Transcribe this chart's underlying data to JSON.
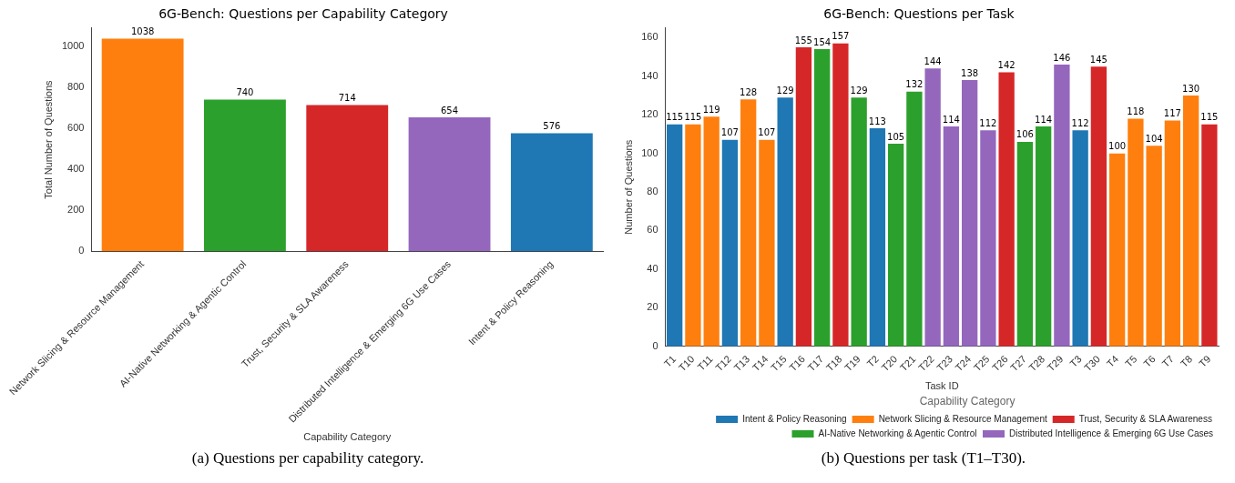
{
  "chart_data": [
    {
      "type": "bar",
      "title": "6G-Bench: Questions per Capability Category",
      "xlabel": "Capability Category",
      "ylabel": "Total Number of Questions",
      "categories": [
        "Network Slicing & Resource Management",
        "AI-Native Networking & Agentic Control",
        "Trust, Security & SLA Awareness",
        "Distributed Intelligence & Emerging 6G Use Cases",
        "Intent & Policy Reasoning"
      ],
      "values": [
        1038,
        740,
        714,
        654,
        576
      ],
      "colors": [
        "#ff7f0e",
        "#2ca02c",
        "#d62728",
        "#9467bd",
        "#1f77b4"
      ],
      "ylim": [
        0,
        1090
      ],
      "yticks": [
        0,
        200,
        400,
        600,
        800,
        1000
      ],
      "grid": false,
      "legend": false,
      "data_labels": true,
      "annotations": [
        "(a) Questions per capability category."
      ]
    },
    {
      "type": "bar",
      "title": "6G-Bench: Questions per Task",
      "xlabel": "Task ID",
      "ylabel": "Number of Questions",
      "legend_title": "Capability Category",
      "categories": [
        "T1",
        "T10",
        "T11",
        "T12",
        "T13",
        "T14",
        "T15",
        "T16",
        "T17",
        "T18",
        "T19",
        "T2",
        "T20",
        "T21",
        "T22",
        "T23",
        "T24",
        "T25",
        "T26",
        "T27",
        "T28",
        "T29",
        "T3",
        "T30",
        "T4",
        "T5",
        "T6",
        "T7",
        "T8",
        "T9"
      ],
      "series": [
        {
          "name": "Intent & Policy Reasoning",
          "color": "#1f77b4",
          "values": [
            115,
            null,
            null,
            107,
            null,
            null,
            129,
            null,
            null,
            null,
            null,
            113,
            null,
            null,
            null,
            null,
            null,
            null,
            null,
            null,
            null,
            null,
            112,
            null,
            null,
            null,
            null,
            null,
            null,
            null
          ]
        },
        {
          "name": "Network Slicing & Resource Management",
          "color": "#ff7f0e",
          "values": [
            null,
            115,
            119,
            null,
            128,
            107,
            null,
            null,
            null,
            null,
            null,
            null,
            null,
            null,
            null,
            null,
            null,
            null,
            null,
            null,
            null,
            null,
            null,
            null,
            100,
            118,
            104,
            117,
            130,
            null
          ]
        },
        {
          "name": "Trust, Security & SLA Awareness",
          "color": "#d62728",
          "values": [
            null,
            null,
            null,
            null,
            null,
            null,
            null,
            155,
            null,
            157,
            null,
            null,
            null,
            null,
            null,
            null,
            null,
            null,
            142,
            null,
            null,
            null,
            null,
            145,
            null,
            null,
            null,
            null,
            null,
            115
          ]
        },
        {
          "name": "AI-Native Networking & Agentic Control",
          "color": "#2ca02c",
          "values": [
            null,
            null,
            null,
            null,
            null,
            null,
            null,
            null,
            154,
            null,
            129,
            null,
            105,
            132,
            null,
            null,
            null,
            null,
            null,
            106,
            114,
            null,
            null,
            null,
            null,
            null,
            null,
            null,
            null,
            null
          ]
        },
        {
          "name": "Distributed Intelligence & Emerging 6G Use Cases",
          "color": "#9467bd",
          "values": [
            null,
            null,
            null,
            null,
            null,
            null,
            null,
            null,
            null,
            null,
            null,
            null,
            null,
            null,
            144,
            114,
            138,
            112,
            null,
            null,
            null,
            146,
            null,
            null,
            null,
            null,
            null,
            null,
            null,
            null
          ]
        }
      ],
      "stacked": true,
      "ylim": [
        0,
        165
      ],
      "yticks": [
        0,
        20,
        40,
        60,
        80,
        100,
        120,
        140,
        160
      ],
      "grid": false,
      "legend": "bottom",
      "data_labels": true,
      "annotations": [
        "(b) Questions per task (T1–T30)."
      ]
    }
  ]
}
